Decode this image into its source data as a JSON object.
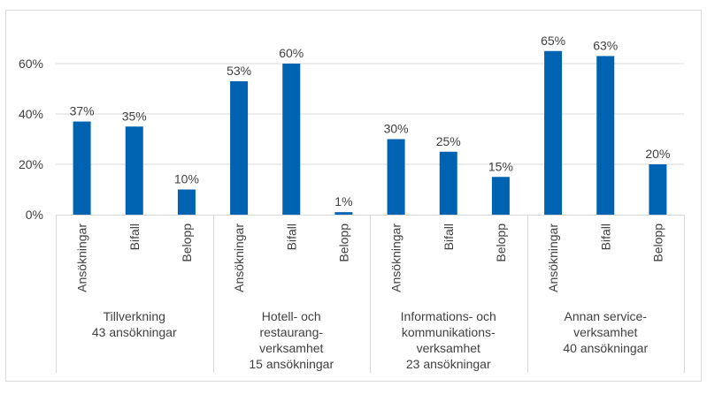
{
  "chart_data": {
    "type": "bar",
    "title": "",
    "xlabel": "",
    "ylabel": "",
    "ylim": [
      0,
      0.7
    ],
    "yticks": [
      "0%",
      "20%",
      "40%",
      "60%"
    ],
    "ytick_values": [
      0,
      0.2,
      0.4,
      0.6
    ],
    "grid": true,
    "legend": "none",
    "bar_color": "#0063B1",
    "groups": [
      {
        "label": [
          "Tillverkning",
          "43 ansökningar"
        ],
        "categories": [
          "Ansökningar",
          "Bifall",
          "Belopp"
        ],
        "values": [
          0.37,
          0.35,
          0.1
        ],
        "data_labels": [
          "37%",
          "35%",
          "10%"
        ]
      },
      {
        "label": [
          "Hotell- och",
          "restaurang-",
          "verksamhet",
          "15 ansökningar"
        ],
        "categories": [
          "Ansökningar",
          "Bifall",
          "Belopp"
        ],
        "values": [
          0.53,
          0.6,
          0.01
        ],
        "data_labels": [
          "53%",
          "60%",
          "1%"
        ]
      },
      {
        "label": [
          "Informations- och",
          "kommunikations-",
          "verksamhet",
          "23 ansökningar"
        ],
        "categories": [
          "Ansökningar",
          "Bifall",
          "Belopp"
        ],
        "values": [
          0.3,
          0.25,
          0.15
        ],
        "data_labels": [
          "30%",
          "25%",
          "15%"
        ]
      },
      {
        "label": [
          "Annan service-",
          "verksamhet",
          "40 ansökningar"
        ],
        "categories": [
          "Ansökningar",
          "Bifall",
          "Belopp"
        ],
        "values": [
          0.65,
          0.63,
          0.2
        ],
        "data_labels": [
          "65%",
          "63%",
          "20%"
        ]
      }
    ]
  }
}
